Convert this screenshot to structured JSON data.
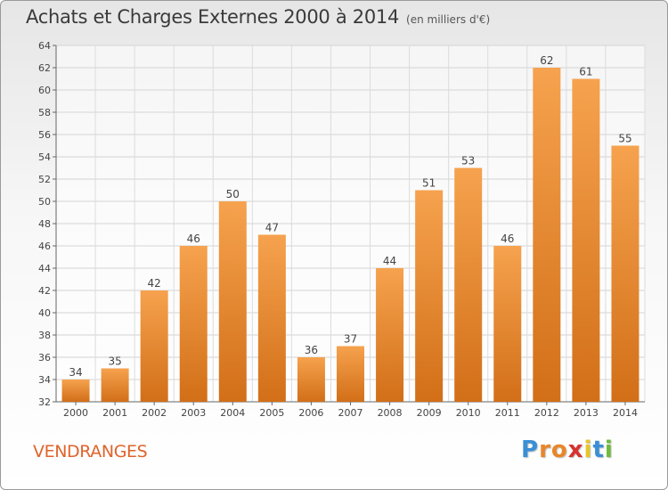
{
  "title": "Achats et Charges Externes 2000 à 2014",
  "subtitle": "(en milliers d'€)",
  "commune": "VENDRANGES",
  "logo": {
    "letters": [
      "P",
      "r",
      "o",
      "x",
      "i",
      "t",
      "i"
    ],
    "colors": [
      "#3a8fd6",
      "#e8862a",
      "#e8862a",
      "#d6322e",
      "#e8c52a",
      "#3a8fd6",
      "#6dbb3a"
    ]
  },
  "colors": {
    "bar_top": "#f6a24e",
    "bar_bottom": "#d26f18",
    "accent": "#e0642c"
  },
  "chart_data": {
    "type": "bar",
    "categories": [
      "2000",
      "2001",
      "2002",
      "2003",
      "2004",
      "2005",
      "2006",
      "2007",
      "2008",
      "2009",
      "2010",
      "2011",
      "2012",
      "2013",
      "2014"
    ],
    "values": [
      34,
      35,
      42,
      46,
      50,
      47,
      36,
      37,
      44,
      51,
      53,
      46,
      62,
      61,
      55
    ],
    "ylim": [
      32,
      64
    ],
    "yticks": [
      32,
      34,
      36,
      38,
      40,
      42,
      44,
      46,
      48,
      50,
      52,
      54,
      56,
      58,
      60,
      62,
      64
    ],
    "grid": true,
    "xlabel": "",
    "ylabel": ""
  }
}
